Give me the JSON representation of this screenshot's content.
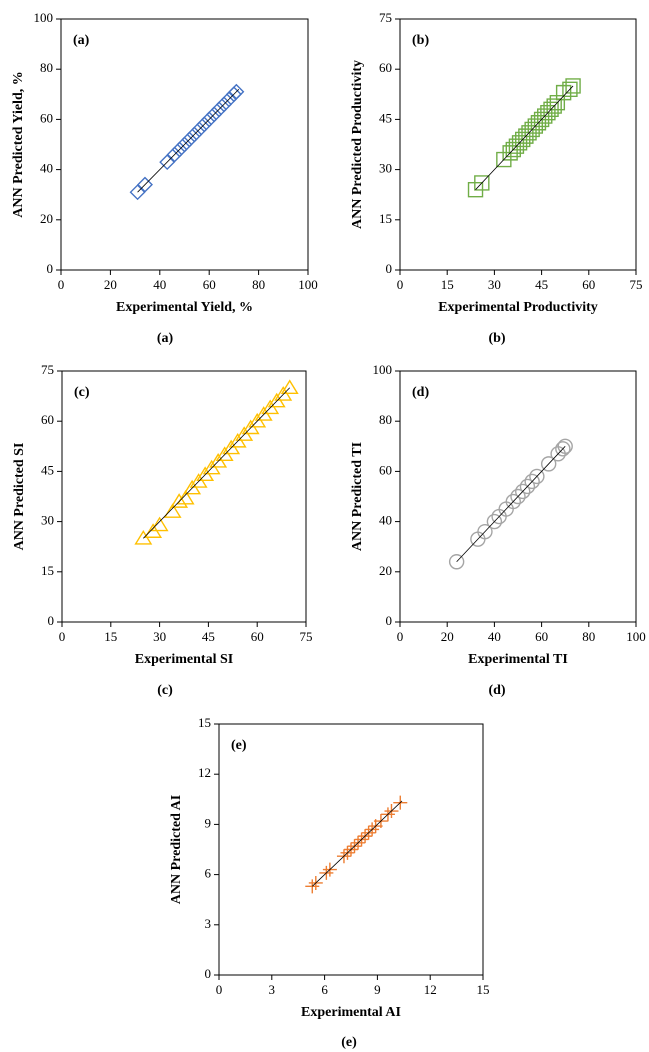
{
  "chart_data": [
    {
      "type": "scatter",
      "panel_label": "(a)",
      "caption": "(a)",
      "x_label": "Experimental Yield, %",
      "y_label": "ANN Predicted Yield, %",
      "xlim": [
        0,
        100
      ],
      "ylim": [
        0,
        100
      ],
      "xticks": [
        0,
        20,
        40,
        60,
        80,
        100
      ],
      "yticks": [
        0,
        20,
        40,
        60,
        80,
        100
      ],
      "color": "#4472c4",
      "marker": "diamond",
      "x": [
        31,
        34,
        43,
        46,
        48,
        50,
        52,
        54,
        56,
        58,
        60,
        62,
        64,
        66,
        68,
        70,
        71
      ],
      "y": [
        31,
        34,
        43,
        46,
        48,
        50,
        52,
        54,
        56,
        58,
        60,
        62,
        64,
        66,
        68,
        70,
        71
      ],
      "fit_line": {
        "x": [
          31,
          72
        ],
        "y": [
          31,
          72
        ]
      }
    },
    {
      "type": "scatter",
      "panel_label": "(b)",
      "caption": "(b)",
      "x_label": "Experimental Productivity",
      "y_label": "ANN Predicted Productivity",
      "xlim": [
        0,
        75
      ],
      "ylim": [
        0,
        75
      ],
      "xticks": [
        0,
        15,
        30,
        45,
        60,
        75
      ],
      "yticks": [
        0,
        15,
        30,
        45,
        60,
        75
      ],
      "color": "#70ad47",
      "marker": "square",
      "x": [
        24,
        26,
        33,
        35,
        36,
        37,
        38,
        39,
        40,
        41,
        42,
        43,
        44,
        45,
        46,
        47,
        48,
        49,
        50,
        52,
        54,
        55
      ],
      "y": [
        24,
        26,
        33,
        35,
        36,
        37,
        38,
        39,
        40,
        41,
        42,
        43,
        44,
        45,
        46,
        47,
        48,
        49,
        50,
        53,
        54,
        55
      ],
      "fit_line": {
        "x": [
          24,
          55
        ],
        "y": [
          24,
          55
        ]
      }
    },
    {
      "type": "scatter",
      "panel_label": "(c)",
      "caption": "(c)",
      "x_label": "Experimental SI",
      "y_label": "ANN Predicted SI",
      "xlim": [
        0,
        75
      ],
      "ylim": [
        0,
        75
      ],
      "xticks": [
        0,
        15,
        30,
        45,
        60,
        75
      ],
      "yticks": [
        0,
        15,
        30,
        45,
        60,
        75
      ],
      "color": "#ffc000",
      "marker": "triangle",
      "x": [
        25,
        28,
        30,
        34,
        36,
        38,
        40,
        42,
        44,
        46,
        48,
        50,
        52,
        54,
        56,
        58,
        60,
        62,
        64,
        66,
        68,
        70
      ],
      "y": [
        25,
        27,
        29,
        33,
        36,
        37,
        40,
        42,
        44,
        46,
        48,
        50,
        52,
        54,
        56,
        58,
        60,
        62,
        64,
        66,
        68,
        70
      ],
      "fit_line": {
        "x": [
          25,
          70
        ],
        "y": [
          25,
          70
        ]
      }
    },
    {
      "type": "scatter",
      "panel_label": "(d)",
      "caption": "(d)",
      "x_label": "Experimental TI",
      "y_label": "ANN Predicted TI",
      "xlim": [
        0,
        100
      ],
      "ylim": [
        0,
        100
      ],
      "xticks": [
        0,
        20,
        40,
        60,
        80,
        100
      ],
      "yticks": [
        0,
        20,
        40,
        60,
        80,
        100
      ],
      "color": "#a5a5a5",
      "marker": "circle",
      "x": [
        24,
        33,
        36,
        40,
        42,
        45,
        48,
        50,
        52,
        54,
        56,
        58,
        63,
        67,
        69,
        70
      ],
      "y": [
        24,
        33,
        36,
        40,
        42,
        45,
        48,
        50,
        52,
        54,
        56,
        58,
        63,
        67,
        69,
        70
      ],
      "fit_line": {
        "x": [
          24,
          70
        ],
        "y": [
          24,
          70
        ]
      }
    },
    {
      "type": "scatter",
      "panel_label": "(e)",
      "caption": "(e)",
      "x_label": "Experimental AI",
      "y_label": "ANN Predicted AI",
      "xlim": [
        0,
        15
      ],
      "ylim": [
        0,
        15
      ],
      "xticks": [
        0,
        3,
        6,
        9,
        12,
        15
      ],
      "yticks": [
        0,
        3,
        6,
        9,
        12,
        15
      ],
      "color": "#ed7d31",
      "marker": "plus",
      "x": [
        5.3,
        5.5,
        6.1,
        6.3,
        7.1,
        7.3,
        7.5,
        7.7,
        7.9,
        8.1,
        8.3,
        8.5,
        8.7,
        8.9,
        9.2,
        9.6,
        9.8,
        10.3
      ],
      "y": [
        5.3,
        5.5,
        6.1,
        6.3,
        7.1,
        7.3,
        7.5,
        7.7,
        7.9,
        8.1,
        8.3,
        8.5,
        8.7,
        8.9,
        9.2,
        9.6,
        9.8,
        10.3
      ],
      "fit_line": {
        "x": [
          5.3,
          10.4
        ],
        "y": [
          5.3,
          10.4
        ]
      }
    }
  ]
}
